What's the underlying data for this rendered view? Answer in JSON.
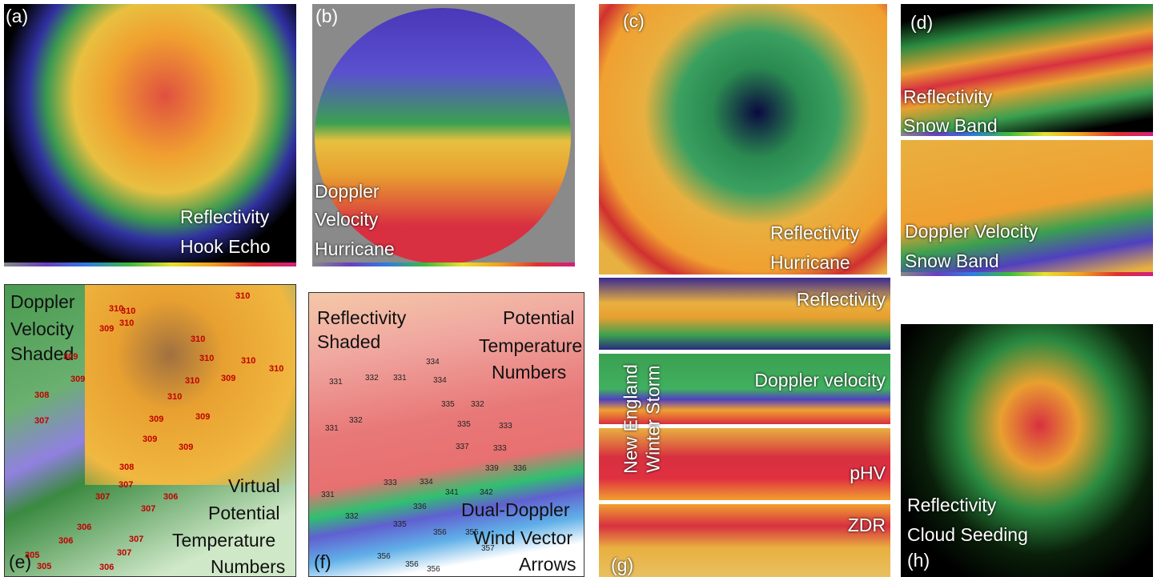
{
  "panel_a": {
    "letter": "(a)",
    "lines": [
      "Reflectivity",
      "Hook Echo"
    ]
  },
  "panel_b": {
    "letter": "(b)",
    "lines": [
      "Doppler",
      "Velocity",
      "Hurricane"
    ]
  },
  "panel_c": {
    "letter": "(c)",
    "lines": [
      "Reflectivity",
      "Hurricane"
    ]
  },
  "panel_d": {
    "letter": "(d)",
    "top_lines": [
      "Reflectivity",
      "Snow Band"
    ],
    "bottom_lines": [
      "Doppler Velocity",
      "Snow Band"
    ]
  },
  "panel_e": {
    "letter": "(e)",
    "left_lines": [
      "Doppler",
      "Velocity",
      "Shaded"
    ],
    "right_lines": [
      "Virtual",
      "Potential",
      "Temperature",
      "Numbers"
    ],
    "numbers": [
      310,
      310,
      310,
      309,
      310,
      310,
      310,
      309,
      310,
      310,
      309,
      308,
      310,
      309,
      310,
      307,
      309,
      309,
      309,
      309,
      308,
      307,
      306,
      307,
      307,
      306,
      307,
      306,
      305,
      307,
      306,
      305
    ]
  },
  "panel_f": {
    "letter": "(f)",
    "left_lines": [
      "Reflectivity",
      "Shaded"
    ],
    "right_lines": [
      "Potential",
      "Temperature",
      "Numbers"
    ],
    "bottom_lines": [
      "Dual-Doppler",
      "Wind Vector",
      "Arrows"
    ],
    "numbers": [
      334,
      331,
      332,
      331,
      334,
      335,
      332,
      333,
      332,
      331,
      335,
      337,
      333,
      339,
      336,
      331,
      332,
      333,
      334,
      341,
      342,
      336,
      335,
      356,
      356,
      356,
      356,
      357,
      355
    ]
  },
  "panel_g": {
    "letter": "(g)",
    "side_lines": [
      "New England",
      "Winter Storm"
    ],
    "strips": [
      "Reflectivity",
      "Doppler velocity",
      "pHV",
      "ZDR"
    ]
  },
  "panel_h": {
    "letter": "(h)",
    "lines": [
      "Reflectivity",
      "Cloud Seeding"
    ]
  }
}
